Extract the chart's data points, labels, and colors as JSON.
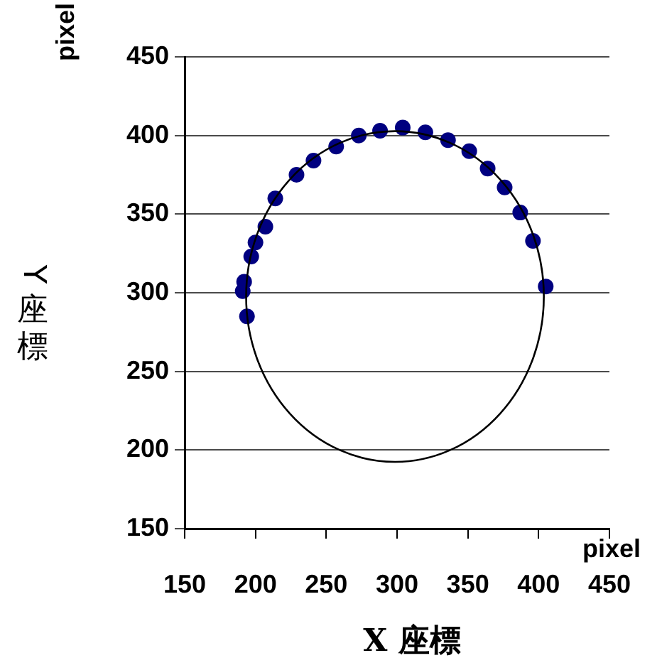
{
  "chart_data": {
    "type": "scatter",
    "xlabel": "X 座標",
    "ylabel": "Y 座標",
    "annotations": [
      "pixel",
      "pixel"
    ],
    "xlim": [
      150,
      450
    ],
    "xticks": [
      150,
      200,
      250,
      300,
      350,
      400,
      450
    ],
    "ylim": [
      150,
      450
    ],
    "yticks": [
      150,
      200,
      250,
      300,
      350,
      400,
      450
    ],
    "grid": "y",
    "marker": "circle",
    "series": [
      {
        "color": "#000080",
        "x": [
          194,
          191,
          192,
          197,
          200,
          207,
          214,
          229,
          241,
          257,
          273,
          288,
          304,
          320,
          336,
          351,
          364,
          376,
          387,
          396,
          405
        ],
        "values": [
          285,
          301,
          307,
          323,
          332,
          342,
          360,
          375,
          384,
          393,
          400,
          403,
          405,
          402,
          397,
          390,
          379,
          367,
          351,
          333,
          304
        ]
      }
    ]
  }
}
